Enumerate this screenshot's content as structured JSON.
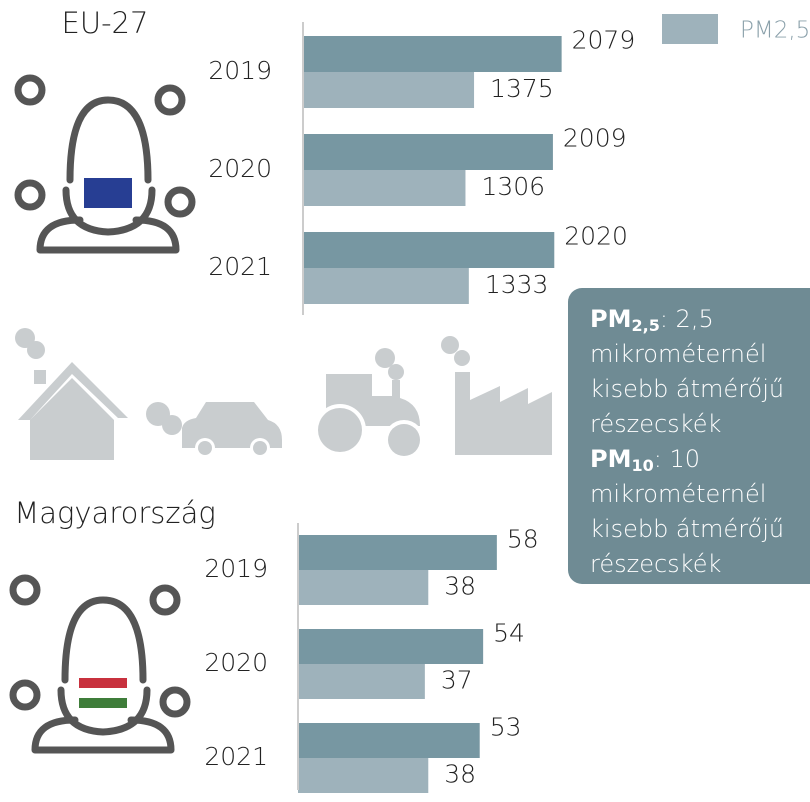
{
  "chart_data": [
    {
      "type": "bar",
      "orientation": "horizontal",
      "title": "EU-27",
      "categories": [
        "2019",
        "2020",
        "2021"
      ],
      "series": [
        {
          "color": "#7797a2",
          "values": [
            2079,
            2009,
            2020
          ]
        },
        {
          "name": "PM2,5",
          "color": "#9eb2bb",
          "values": [
            1375,
            1306,
            1333
          ]
        }
      ],
      "xlim": [
        0,
        2500
      ]
    },
    {
      "type": "bar",
      "orientation": "horizontal",
      "title": "Magyarország",
      "categories": [
        "2019",
        "2020",
        "2021"
      ],
      "series": [
        {
          "color": "#7797a2",
          "values": [
            58,
            54,
            53
          ]
        },
        {
          "color": "#9eb2bb",
          "values": [
            38,
            37,
            38
          ]
        }
      ],
      "xlim": [
        0,
        70
      ]
    }
  ],
  "info_box": [
    {
      "term": "PM",
      "sub": "2,5",
      "text": ": 2,5",
      "lines": [
        "mikrométernél",
        "kisebb átmérőjű",
        "részecskék"
      ]
    },
    {
      "term": "PM",
      "sub": "10",
      "text": ": 10",
      "lines": [
        "mikrométernél",
        "kisebb átmérőjű",
        "részecskék"
      ]
    }
  ]
}
